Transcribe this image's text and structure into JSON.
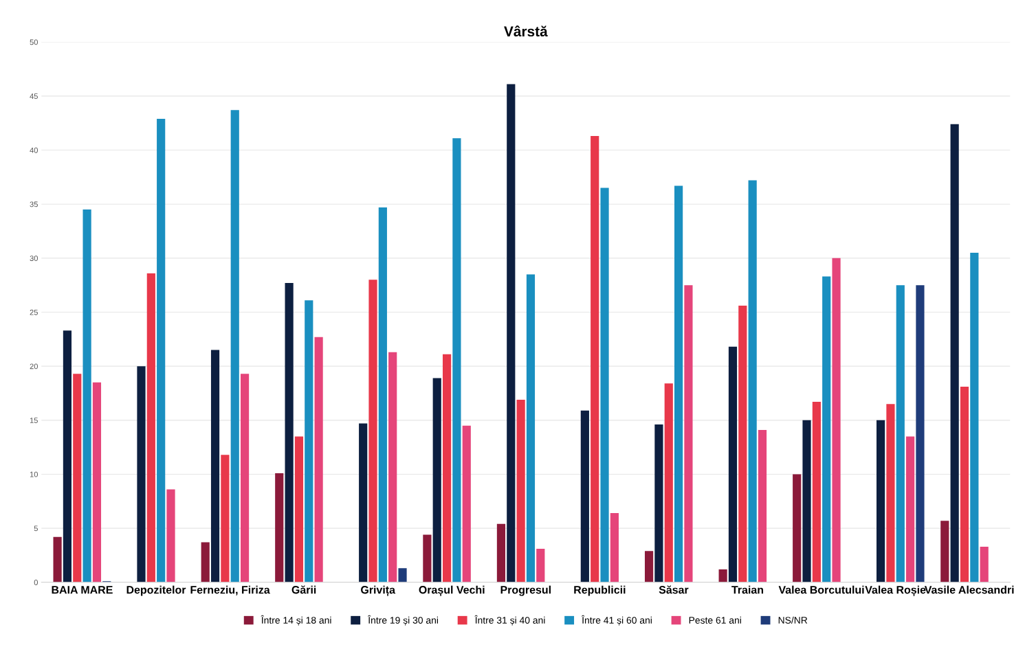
{
  "chart_data": {
    "type": "bar",
    "title": "Vârstă",
    "categories": [
      "BAIA MARE",
      "Depozitelor",
      "Ferneziu, Firiza",
      "Gării",
      "Grivița",
      "Orașul Vechi",
      "Progresul",
      "Republicii",
      "Săsar",
      "Traian",
      "Valea Borcutului",
      "Valea Roșie",
      "Vasile Alecsandri"
    ],
    "series": [
      {
        "name": "Între 14 și 18 ani",
        "color": "#8b1a3a",
        "values": [
          4.2,
          0,
          3.7,
          10.1,
          0,
          4.4,
          5.4,
          0,
          2.9,
          1.2,
          10,
          0,
          5.7
        ]
      },
      {
        "name": "Între 19 și 30 ani",
        "color": "#0d1f40",
        "values": [
          23.3,
          20,
          21.5,
          27.7,
          14.7,
          18.9,
          46.1,
          15.9,
          14.6,
          21.8,
          15,
          15,
          42.4
        ]
      },
      {
        "name": "Între 31 și 40 ani",
        "color": "#e8384a",
        "values": [
          19.3,
          28.6,
          11.8,
          13.5,
          28,
          21.1,
          16.9,
          41.3,
          18.4,
          25.6,
          16.7,
          16.5,
          18.1
        ]
      },
      {
        "name": "Între 41 și 60 ani",
        "color": "#1a8fc0",
        "values": [
          34.5,
          42.9,
          43.7,
          26.1,
          34.7,
          41.1,
          28.5,
          36.5,
          36.7,
          37.2,
          28.3,
          27.5,
          30.5
        ]
      },
      {
        "name": "Peste 61 ani",
        "color": "#e5457a",
        "values": [
          18.5,
          8.6,
          19.3,
          22.7,
          21.3,
          14.5,
          3.1,
          6.4,
          27.5,
          14.1,
          30,
          13.5,
          3.3
        ]
      },
      {
        "name": "NS/NR",
        "color": "#1f3c7a",
        "values": [
          0.1,
          0,
          0,
          0,
          1.3,
          0,
          0,
          0,
          0,
          0,
          0,
          27.5,
          0
        ]
      }
    ],
    "ylim": [
      0,
      50
    ],
    "yticks": [
      0,
      5,
      10,
      15,
      20,
      25,
      30,
      35,
      40,
      45,
      50
    ],
    "grid": "y",
    "legend": "bottom"
  }
}
